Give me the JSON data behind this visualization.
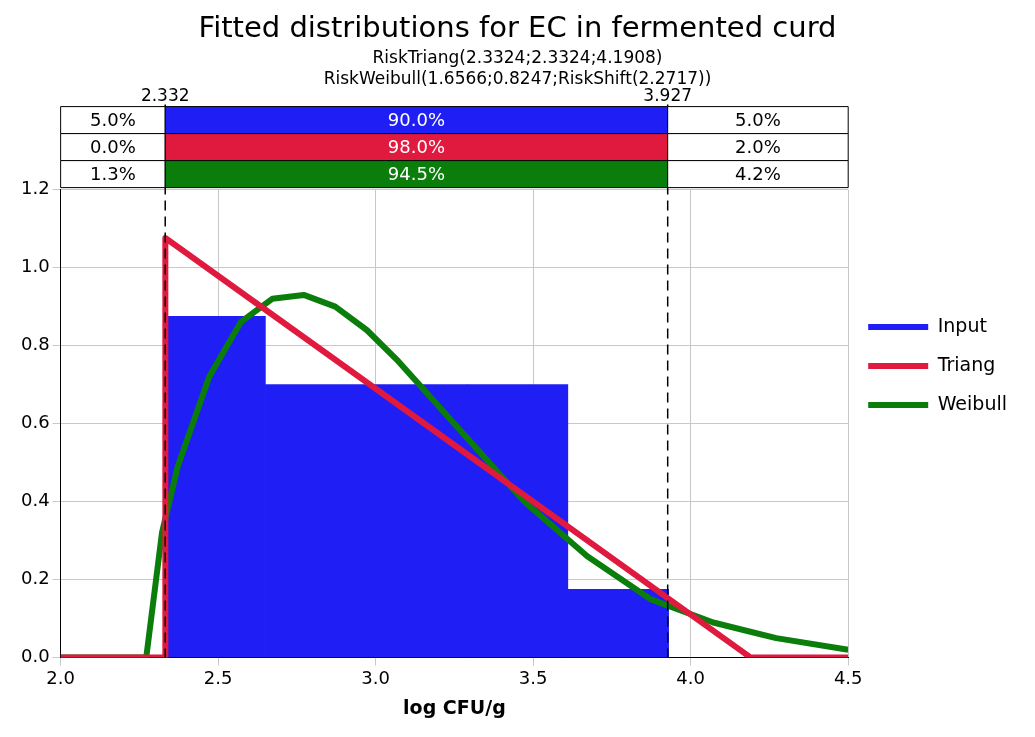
{
  "chart_data": {
    "type": "histogram",
    "title": "Fitted distributions for EC in fermented curd",
    "subtitle": "RiskTriang(2.3324;2.3324;4.1908)\nRiskWeibull(1.6566;0.8247;RiskShift(2.2717))",
    "xlabel": "log CFU/g",
    "xlim": [
      2.0,
      4.5
    ],
    "xticks": [
      {
        "value": 2.0,
        "label": "2.0"
      },
      {
        "value": 2.5,
        "label": "2.5"
      },
      {
        "value": 3.0,
        "label": "3.0"
      },
      {
        "value": 3.5,
        "label": "3.5"
      },
      {
        "value": 4.0,
        "label": "4.0"
      },
      {
        "value": 4.5,
        "label": "4.5"
      }
    ],
    "ylim": [
      0,
      1.2
    ],
    "yticks": [
      {
        "value": 0,
        "label": "0.0"
      },
      {
        "value": 0.2,
        "label": "0.2"
      },
      {
        "value": 0.4,
        "label": "0.4"
      },
      {
        "value": 0.6,
        "label": "0.6"
      },
      {
        "value": 0.8,
        "label": "0.8"
      },
      {
        "value": 1.0,
        "label": "1.0"
      },
      {
        "value": 1.2,
        "label": "1.2"
      }
    ],
    "bins": [
      2.33,
      2.65,
      2.97,
      3.29,
      3.61,
      3.93
    ],
    "grid": true,
    "legend": "right",
    "line_style": "solid",
    "marker": "none",
    "series": [
      {
        "name": "Input",
        "color": "#1f1ff5",
        "values": [
          0.875,
          0.7,
          0.7,
          0.7,
          0.175
        ]
      },
      {
        "name": "Triang",
        "type": "line",
        "color": "#e0193f",
        "x": [
          2.0,
          2.3324,
          2.3324,
          4.1908,
          4.5
        ],
        "values": [
          0,
          0,
          1.076,
          0,
          0
        ]
      },
      {
        "name": "Weibull",
        "type": "line",
        "color": "#0b7d0b",
        "x": [
          2.0,
          2.2717,
          2.3217,
          2.3717,
          2.4717,
          2.5717,
          2.6717,
          2.7717,
          2.8717,
          2.9717,
          3.0717,
          3.1717,
          3.2717,
          3.4717,
          3.6717,
          3.8717,
          4.0717,
          4.2717,
          4.5
        ],
        "values": [
          0,
          0,
          0.32,
          0.49,
          0.72,
          0.86,
          0.92,
          0.93,
          0.9,
          0.84,
          0.76,
          0.67,
          0.58,
          0.4,
          0.26,
          0.15,
          0.09,
          0.05,
          0.02
        ]
      }
    ],
    "ref_lines": [
      {
        "axis": "x",
        "value": 2.332,
        "label": "2.332",
        "color": "#000000",
        "line_style": "dashed"
      },
      {
        "axis": "x",
        "value": 3.927,
        "label": "3.927",
        "color": "#000000",
        "line_style": "dashed"
      }
    ],
    "annotations": [
      "5.0%",
      "90.0%",
      "5.0%",
      "0.0%",
      "98.0%",
      "2.0%",
      "1.3%",
      "94.5%",
      "4.2%"
    ]
  }
}
